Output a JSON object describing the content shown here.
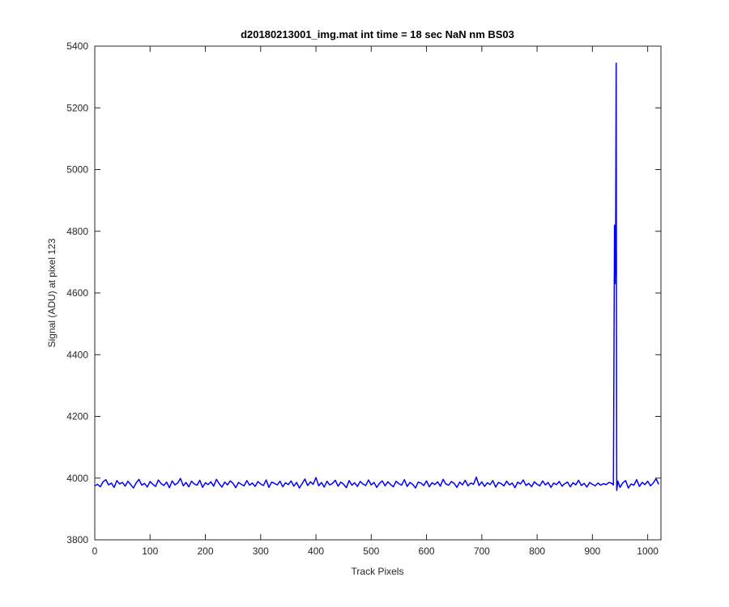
{
  "chart_data": {
    "type": "line",
    "title": "d20180213001_img.mat int time = 18 sec  NaN nm BS03",
    "xlabel": "Track Pixels",
    "ylabel": "Signal (ADU) at pixel 123",
    "xlim": [
      0,
      1024
    ],
    "ylim": [
      3800,
      5400
    ],
    "xticks": [
      0,
      100,
      200,
      300,
      400,
      500,
      600,
      700,
      800,
      900,
      1000
    ],
    "yticks": [
      3800,
      4000,
      4200,
      4400,
      4600,
      4800,
      5000,
      5200,
      5400
    ],
    "grid": false,
    "x": [
      0,
      5,
      10,
      15,
      20,
      25,
      30,
      35,
      40,
      45,
      50,
      55,
      60,
      65,
      70,
      75,
      80,
      85,
      90,
      95,
      100,
      105,
      110,
      115,
      120,
      125,
      130,
      135,
      140,
      145,
      150,
      155,
      160,
      165,
      170,
      175,
      180,
      185,
      190,
      195,
      200,
      205,
      210,
      215,
      220,
      225,
      230,
      235,
      240,
      245,
      250,
      255,
      260,
      265,
      270,
      275,
      280,
      285,
      290,
      295,
      300,
      305,
      310,
      315,
      320,
      325,
      330,
      335,
      340,
      345,
      350,
      355,
      360,
      365,
      370,
      375,
      380,
      385,
      390,
      395,
      400,
      405,
      410,
      415,
      420,
      425,
      430,
      435,
      440,
      445,
      450,
      455,
      460,
      465,
      470,
      475,
      480,
      485,
      490,
      495,
      500,
      505,
      510,
      515,
      520,
      525,
      530,
      535,
      540,
      545,
      550,
      555,
      560,
      565,
      570,
      575,
      580,
      585,
      590,
      595,
      600,
      605,
      610,
      615,
      620,
      625,
      630,
      635,
      640,
      645,
      650,
      655,
      660,
      665,
      670,
      675,
      680,
      685,
      690,
      695,
      700,
      705,
      710,
      715,
      720,
      725,
      730,
      735,
      740,
      745,
      750,
      755,
      760,
      765,
      770,
      775,
      780,
      785,
      790,
      795,
      800,
      805,
      810,
      815,
      820,
      825,
      830,
      835,
      840,
      845,
      850,
      855,
      860,
      865,
      870,
      875,
      880,
      885,
      890,
      895,
      900,
      905,
      910,
      915,
      920,
      925,
      930,
      935,
      938,
      940,
      941,
      942,
      943,
      944,
      946,
      950,
      955,
      960,
      965,
      970,
      975,
      980,
      985,
      990,
      995,
      1000,
      1005,
      1010,
      1015,
      1020
    ],
    "series": [
      {
        "name": "signal",
        "color": "#0000ff",
        "values": [
          3975,
          3980,
          3972,
          3988,
          3995,
          3978,
          3984,
          3970,
          3992,
          3981,
          3986,
          3974,
          3990,
          3979,
          3968,
          3985,
          3996,
          3977,
          3983,
          3971,
          3989,
          3980,
          3973,
          3994,
          3982,
          3976,
          3987,
          3969,
          3991,
          3978,
          3984,
          3999,
          3975,
          3986,
          3972,
          3990,
          3981,
          3977,
          3993,
          3970,
          3985,
          3979,
          3988,
          3974,
          3996,
          3982,
          3971,
          3987,
          3978,
          3991,
          3983,
          3969,
          3986,
          3980,
          3975,
          3992,
          3977,
          3984,
          3973,
          3989,
          3981,
          3976,
          3994,
          3970,
          3987,
          3983,
          3978,
          3990,
          3972,
          3985,
          3979,
          3991,
          3974,
          3986,
          3968,
          3982,
          3997,
          3976,
          3988,
          3980,
          4002,
          3975,
          3986,
          3971,
          3990,
          3978,
          3983,
          3993,
          3974,
          3987,
          3980,
          3969,
          3992,
          3977,
          3985,
          3973,
          3989,
          3981,
          3976,
          3994,
          3978,
          3986,
          3970,
          3983,
          3991,
          3975,
          3988,
          3979,
          3972,
          3990,
          3982,
          3977,
          3995,
          3973,
          3986,
          3980,
          3968,
          3987,
          3984,
          3976,
          3991,
          3972,
          3985,
          3979,
          3988,
          3974,
          3996,
          3981,
          3977,
          3989,
          3983,
          3970,
          3987,
          3978,
          3993,
          3975,
          3984,
          3980,
          4003,
          3976,
          3988,
          3973,
          3985,
          3979,
          3992,
          3971,
          3986,
          3982,
          3975,
          3990,
          3978,
          3984,
          3969,
          3987,
          3981,
          3994,
          3976,
          3983,
          3972,
          3988,
          3980,
          3975,
          3991,
          3978,
          3986,
          3970,
          3984,
          3979,
          3989,
          3974,
          3982,
          3987,
          3972,
          3985,
          3978,
          3993,
          3976,
          3983,
          3971,
          3986,
          3980,
          3975,
          3984,
          3977,
          3982,
          3979,
          3986,
          3983,
          3978,
          4820,
          4630,
          4780,
          5345,
          3960,
          3990,
          3970,
          3985,
          3992,
          3968,
          3981,
          3977,
          3995,
          3973,
          3986,
          3979,
          3990,
          3975,
          3984,
          3998,
          3980
        ]
      }
    ]
  }
}
